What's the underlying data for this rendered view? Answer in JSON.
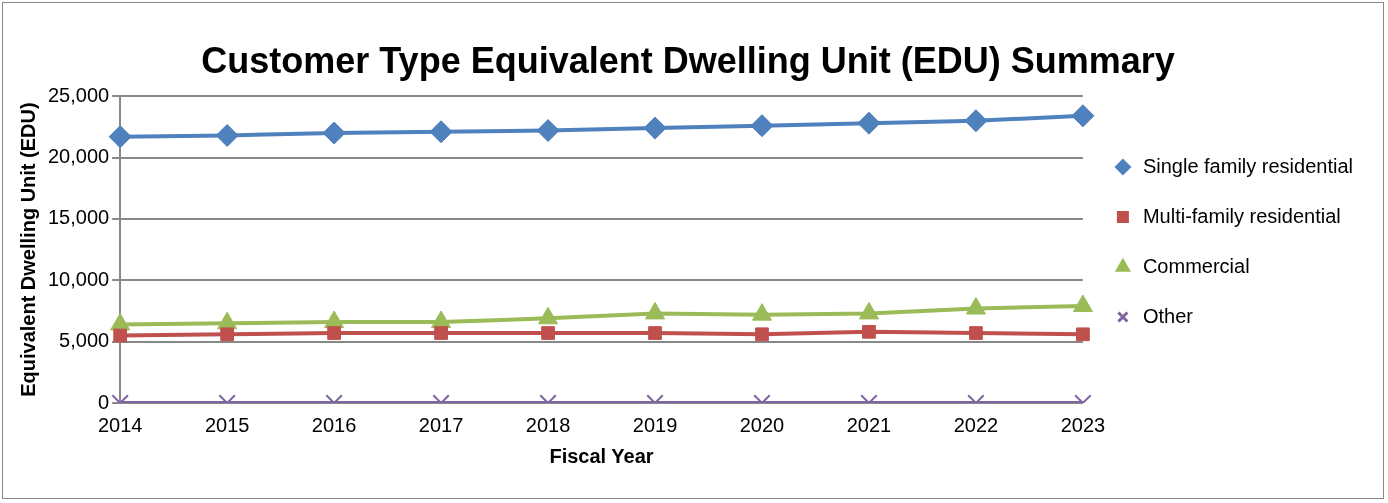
{
  "chart_data": {
    "type": "line",
    "title": "Customer Type Equivalent Dwelling Unit (EDU) Summary",
    "xlabel": "Fiscal Year",
    "ylabel": "Equivalent Dwelling Unit (EDU)",
    "categories": [
      "2014",
      "2015",
      "2016",
      "2017",
      "2018",
      "2019",
      "2020",
      "2021",
      "2022",
      "2023"
    ],
    "series": [
      {
        "name": "Single family residential",
        "color": "#4f81bd",
        "marker": "diamond",
        "values": [
          21700,
          21800,
          22000,
          22100,
          22200,
          22400,
          22600,
          22800,
          23000,
          23400
        ]
      },
      {
        "name": "Multi-family residential",
        "color": "#c0504d",
        "marker": "square",
        "values": [
          5500,
          5600,
          5700,
          5700,
          5700,
          5700,
          5600,
          5800,
          5700,
          5600
        ]
      },
      {
        "name": "Commercial",
        "color": "#9bbb59",
        "marker": "triangle",
        "values": [
          6400,
          6500,
          6600,
          6600,
          6900,
          7300,
          7200,
          7300,
          7700,
          7900
        ]
      },
      {
        "name": "Other",
        "color": "#8064a2",
        "marker": "cross",
        "values": [
          0,
          0,
          0,
          0,
          0,
          0,
          0,
          0,
          0,
          0
        ]
      }
    ],
    "ylim": [
      0,
      25000
    ],
    "yticks": [
      {
        "value": 0,
        "label": "0"
      },
      {
        "value": 5000,
        "label": "5,000"
      },
      {
        "value": 10000,
        "label": "10,000"
      },
      {
        "value": 15000,
        "label": "15,000"
      },
      {
        "value": 20000,
        "label": "20,000"
      },
      {
        "value": 25000,
        "label": "25,000"
      }
    ],
    "grid": "y",
    "legend": "right"
  }
}
